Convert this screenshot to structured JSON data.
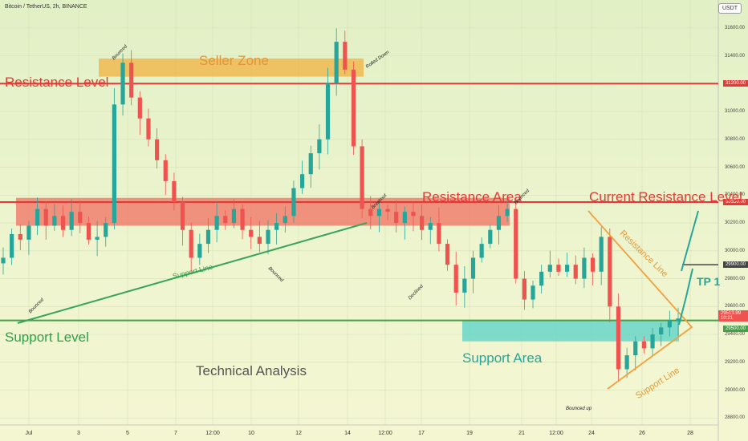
{
  "header": {
    "title": "Bitcoin / TetherUS, 2h, BINANCE",
    "currency": "USDT"
  },
  "colors": {
    "resistance": "#e53935",
    "support": "#43a047",
    "trendline": "#f0a040",
    "seller_zone": "#f0b040",
    "support_area": "#4dd0c8",
    "up": "#26a69a",
    "down": "#ef5350"
  },
  "annotations": {
    "seller_zone": "Seller Zone",
    "resistance_level": "Resistance Level",
    "resistance_area": "Resistance Area",
    "current_resistance_level": "Current Resistance Level",
    "support_level": "Support Level",
    "support_area": "Support Area",
    "support_line_left": "Support Line",
    "support_line_right": "Support Line",
    "resistance_line": "Resistance Line",
    "technical_analysis": "Technical Analysis",
    "tp1": "TP 1",
    "bounced_1": "Bounced",
    "bounced_2": "Bounced",
    "bounced_3": "Bounced",
    "bounced_4": "Bounced",
    "rolled_down": "Rolled Down",
    "breakout": "Breakout",
    "declined": "Declined",
    "bounced_up": "Bounced up"
  },
  "chart_data": {
    "type": "candlestick",
    "title": "Bitcoin / TetherUS, 2h, BINANCE",
    "ylim": [
      28750,
      31800
    ],
    "y_ticks": [
      28800,
      29000,
      29200,
      29400,
      29600,
      29800,
      30000,
      30200,
      30400,
      30600,
      30800,
      31000,
      31200,
      31400,
      31600
    ],
    "y_tick_labels": [
      "28800.00",
      "29000.00",
      "29200.00",
      "29400.00",
      "29600.00",
      "29800.00",
      "30000.00",
      "30200.00",
      "30400.00",
      "30600.00",
      "30800.00",
      "31000.00",
      "31200.00",
      "31400.00",
      "31600.00"
    ],
    "x_tick_labels": [
      "Jul",
      "3",
      "5",
      "7",
      "12:00",
      "10",
      "12",
      "14",
      "12:00",
      "17",
      "19",
      "21",
      "12:00",
      "24",
      "26",
      "28"
    ],
    "levels": {
      "resistance_level": 31200,
      "current_resistance_level": 30350,
      "tp1": 29900,
      "support_level": 29500,
      "current_price": 29513.99,
      "countdown": "10:21"
    },
    "zones": {
      "seller_zone": [
        31250,
        31380
      ],
      "resistance_area": [
        30180,
        30380
      ],
      "support_area": [
        29350,
        29500
      ]
    },
    "price_labels": [
      "31200.00",
      "30350.00",
      "29900.00",
      "29513.99",
      "29500.00"
    ],
    "series": [
      {
        "values": [
          29950,
          30120,
          30080,
          30180,
          30300,
          30180,
          30250,
          30150,
          30280,
          30200,
          30080,
          30100,
          30200,
          31050,
          31350,
          31100,
          30950,
          30800,
          30650,
          30500,
          30350,
          30150,
          29950,
          30050,
          30150,
          30250,
          30200,
          30300,
          30150,
          30100,
          30050,
          30150,
          30200,
          30250,
          30450,
          30550,
          30700,
          30800,
          31200,
          31500,
          31300,
          30750,
          30300,
          30250,
          30300,
          30280,
          30200,
          30280,
          30250,
          30150,
          30200,
          30050,
          29900,
          29700,
          29800,
          29950,
          30050,
          30150,
          30250,
          30300,
          29800,
          29650,
          29750,
          29850,
          29900,
          29850,
          29900,
          29800,
          29950,
          29850,
          30100,
          29600,
          29150,
          29250,
          29350,
          29300,
          29400,
          29450,
          29500,
          29514
        ]
      }
    ]
  }
}
